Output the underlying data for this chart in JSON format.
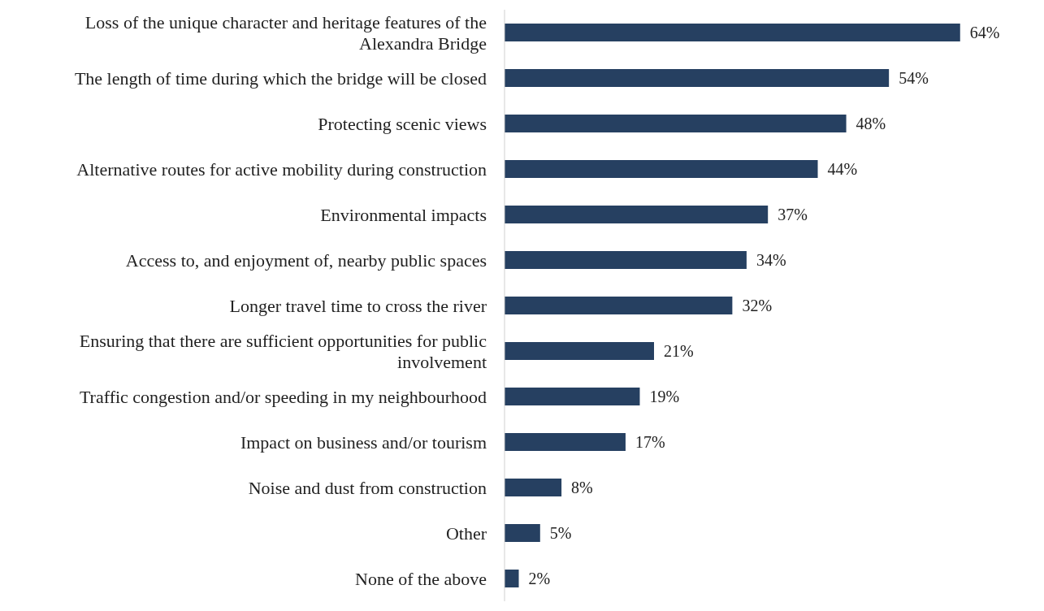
{
  "chart_data": {
    "type": "bar",
    "orientation": "horizontal",
    "categories": [
      "Loss of the unique character and heritage features of the Alexandra Bridge",
      "The length of time during which the bridge will be closed",
      "Protecting scenic views",
      "Alternative routes for active mobility during construction",
      "Environmental impacts",
      "Access to, and enjoyment of, nearby public spaces",
      "Longer travel time to cross the river",
      "Ensuring that there are sufficient opportunities for public involvement",
      "Traffic congestion and/or speeding in my neighbourhood",
      "Impact on business and/or tourism",
      "Noise and dust from construction",
      "Other",
      "None of the above"
    ],
    "values": [
      64,
      54,
      48,
      44,
      37,
      34,
      32,
      21,
      19,
      17,
      8,
      5,
      2
    ],
    "value_labels": [
      "64%",
      "54%",
      "48%",
      "44%",
      "37%",
      "34%",
      "32%",
      "21%",
      "19%",
      "17%",
      "8%",
      "5%",
      "2%"
    ],
    "color": "#264061"
  }
}
